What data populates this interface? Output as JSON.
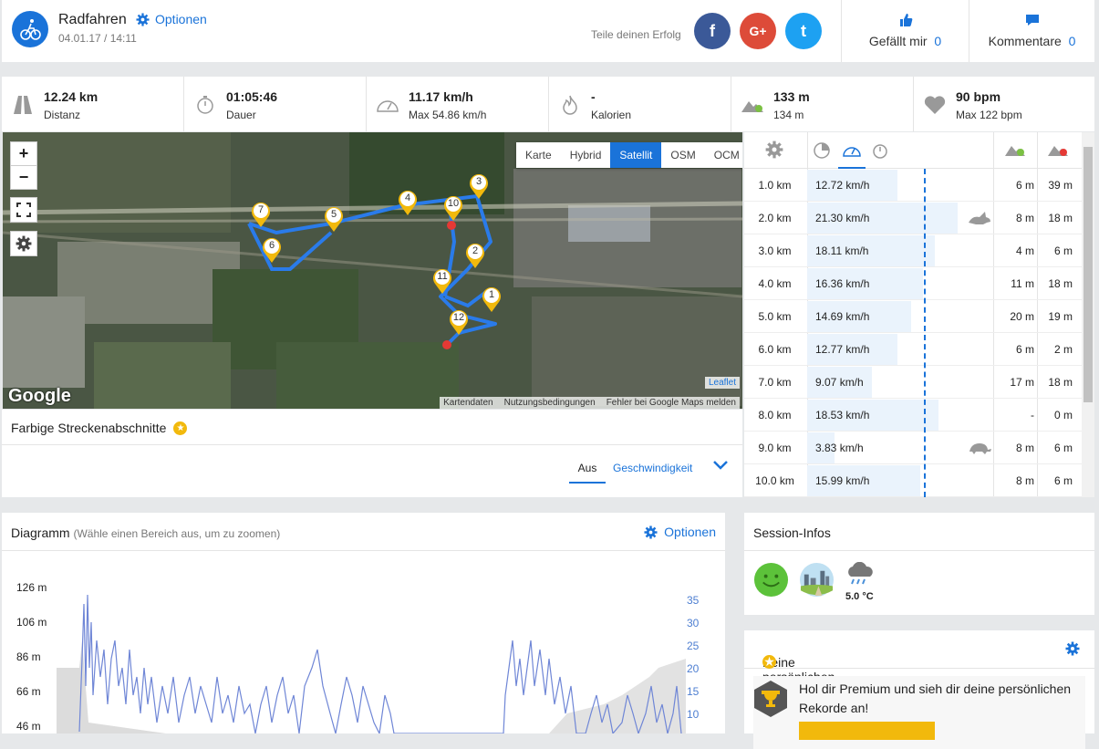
{
  "header": {
    "title": "Radfahren",
    "options_label": "Optionen",
    "datetime": "04.01.17 / 14:11",
    "share_label": "Teile deinen Erfolg",
    "like_label": "Gefällt mir",
    "like_count": "0",
    "comment_label": "Kommentare",
    "comment_count": "0",
    "social": [
      "f",
      "G+",
      "t"
    ]
  },
  "stats": [
    {
      "icon": "road-icon",
      "value": "12.24 km",
      "label": "Distanz"
    },
    {
      "icon": "stopwatch-icon",
      "value": "01:05:46",
      "label": "Dauer"
    },
    {
      "icon": "speedometer-icon",
      "value": "11.17 km/h",
      "label": "Max 54.86 km/h"
    },
    {
      "icon": "flame-icon",
      "value": "-",
      "label": "Kalorien"
    },
    {
      "icon": "elevation-icon",
      "value": "133 m",
      "label": "134 m"
    },
    {
      "icon": "heart-icon",
      "value": "90 bpm",
      "label": "Max 122 bpm"
    }
  ],
  "map": {
    "types": [
      "Karte",
      "Hybrid",
      "Satellit",
      "OSM",
      "OCM"
    ],
    "active_type": "Satellit",
    "zoom_in": "+",
    "zoom_out": "−",
    "brand": "Google",
    "leaflet": "Leaflet",
    "attribution": [
      "Kartendaten",
      "Nutzungsbedingungen",
      "Fehler bei Google Maps melden"
    ],
    "markers": [
      "1",
      "2",
      "3",
      "4",
      "5",
      "6",
      "7",
      "10",
      "11",
      "12"
    ]
  },
  "segments": {
    "title": "Farbige Streckenabschnitte",
    "toggle_off": "Aus",
    "toggle_speed": "Geschwindigkeit"
  },
  "splits": [
    {
      "km": "1.0 km",
      "speed": "12.72 km/h",
      "up": "6 m",
      "down": "39 m",
      "fill": 0.6,
      "icon": ""
    },
    {
      "km": "2.0 km",
      "speed": "21.30 km/h",
      "up": "8 m",
      "down": "18 m",
      "fill": 1.0,
      "icon": "rabbit-icon"
    },
    {
      "km": "3.0 km",
      "speed": "18.11 km/h",
      "up": "4 m",
      "down": "6 m",
      "fill": 0.85,
      "icon": ""
    },
    {
      "km": "4.0 km",
      "speed": "16.36 km/h",
      "up": "11 m",
      "down": "18 m",
      "fill": 0.77,
      "icon": ""
    },
    {
      "km": "5.0 km",
      "speed": "14.69 km/h",
      "up": "20 m",
      "down": "19 m",
      "fill": 0.69,
      "icon": ""
    },
    {
      "km": "6.0 km",
      "speed": "12.77 km/h",
      "up": "6 m",
      "down": "2 m",
      "fill": 0.6,
      "icon": ""
    },
    {
      "km": "7.0 km",
      "speed": "9.07 km/h",
      "up": "17 m",
      "down": "18 m",
      "fill": 0.43,
      "icon": ""
    },
    {
      "km": "8.0 km",
      "speed": "18.53 km/h",
      "up": "-",
      "down": "0 m",
      "fill": 0.87,
      "icon": ""
    },
    {
      "km": "9.0 km",
      "speed": "3.83 km/h",
      "up": "8 m",
      "down": "6 m",
      "fill": 0.18,
      "icon": "turtle-icon"
    },
    {
      "km": "10.0 km",
      "speed": "15.99 km/h",
      "up": "8 m",
      "down": "6 m",
      "fill": 0.75,
      "icon": ""
    }
  ],
  "diagram": {
    "title": "Diagramm",
    "subtitle": "(Wähle einen Bereich aus, um zu zoomen)",
    "options_label": "Optionen",
    "y_left": [
      "126 m",
      "106 m",
      "86 m",
      "66 m",
      "46 m"
    ],
    "y_right": [
      "35",
      "30",
      "25",
      "20",
      "15",
      "10"
    ]
  },
  "session": {
    "title": "Session-Infos",
    "temperature": "5.0 °C"
  },
  "records": {
    "title": "Keine persönlichen Rekorde",
    "text": "Hol dir Premium und sieh dir deine persönlichen Rekorde an!"
  },
  "colors": {
    "accent": "#1a73d9",
    "facebook": "#3b5998",
    "google": "#dd4b39",
    "twitter": "#1da1f2",
    "star": "#f2b90c",
    "route": "#2a7bea",
    "marker": "#f2b90c"
  }
}
